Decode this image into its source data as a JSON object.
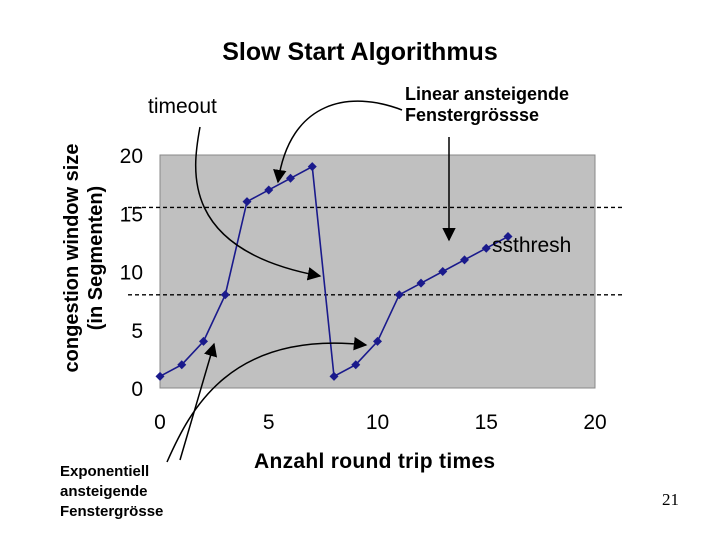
{
  "slide": {
    "page_number": "21"
  },
  "annotations": {
    "timeout": "timeout",
    "linear_line1": "Linear ansteigende",
    "linear_line2": "Fenstergrössse",
    "expo_line1": "Exponentiell",
    "expo_line2": "ansteigende",
    "expo_line3": "Fenstergrösse",
    "ssthresh": "ssthresh"
  },
  "chart_data": {
    "type": "line",
    "title": "Slow Start Algorithmus",
    "xlabel": "Anzahl round trip times",
    "ylabel_line1": "congestion window size",
    "ylabel_line2": "(in Segmenten)",
    "xlim": [
      0,
      20
    ],
    "ylim": [
      0,
      20
    ],
    "x_ticks": [
      "0",
      "5",
      "10",
      "15",
      "20"
    ],
    "y_ticks": [
      "0",
      "5",
      "10",
      "15",
      "20"
    ],
    "grid": false,
    "legend": "none",
    "plot_background": "#c0c0c0",
    "series_color": "#1a1a8c",
    "ssthresh_levels": [
      15.5,
      8
    ],
    "series": [
      {
        "x": [
          0,
          1,
          2,
          3,
          4,
          5,
          6,
          7,
          8,
          9,
          10,
          11,
          12,
          13,
          14,
          15,
          16
        ],
        "y": [
          1,
          2,
          4,
          8,
          16,
          17,
          18,
          19,
          1,
          2,
          4,
          8,
          9,
          10,
          11,
          12,
          13
        ]
      }
    ]
  }
}
